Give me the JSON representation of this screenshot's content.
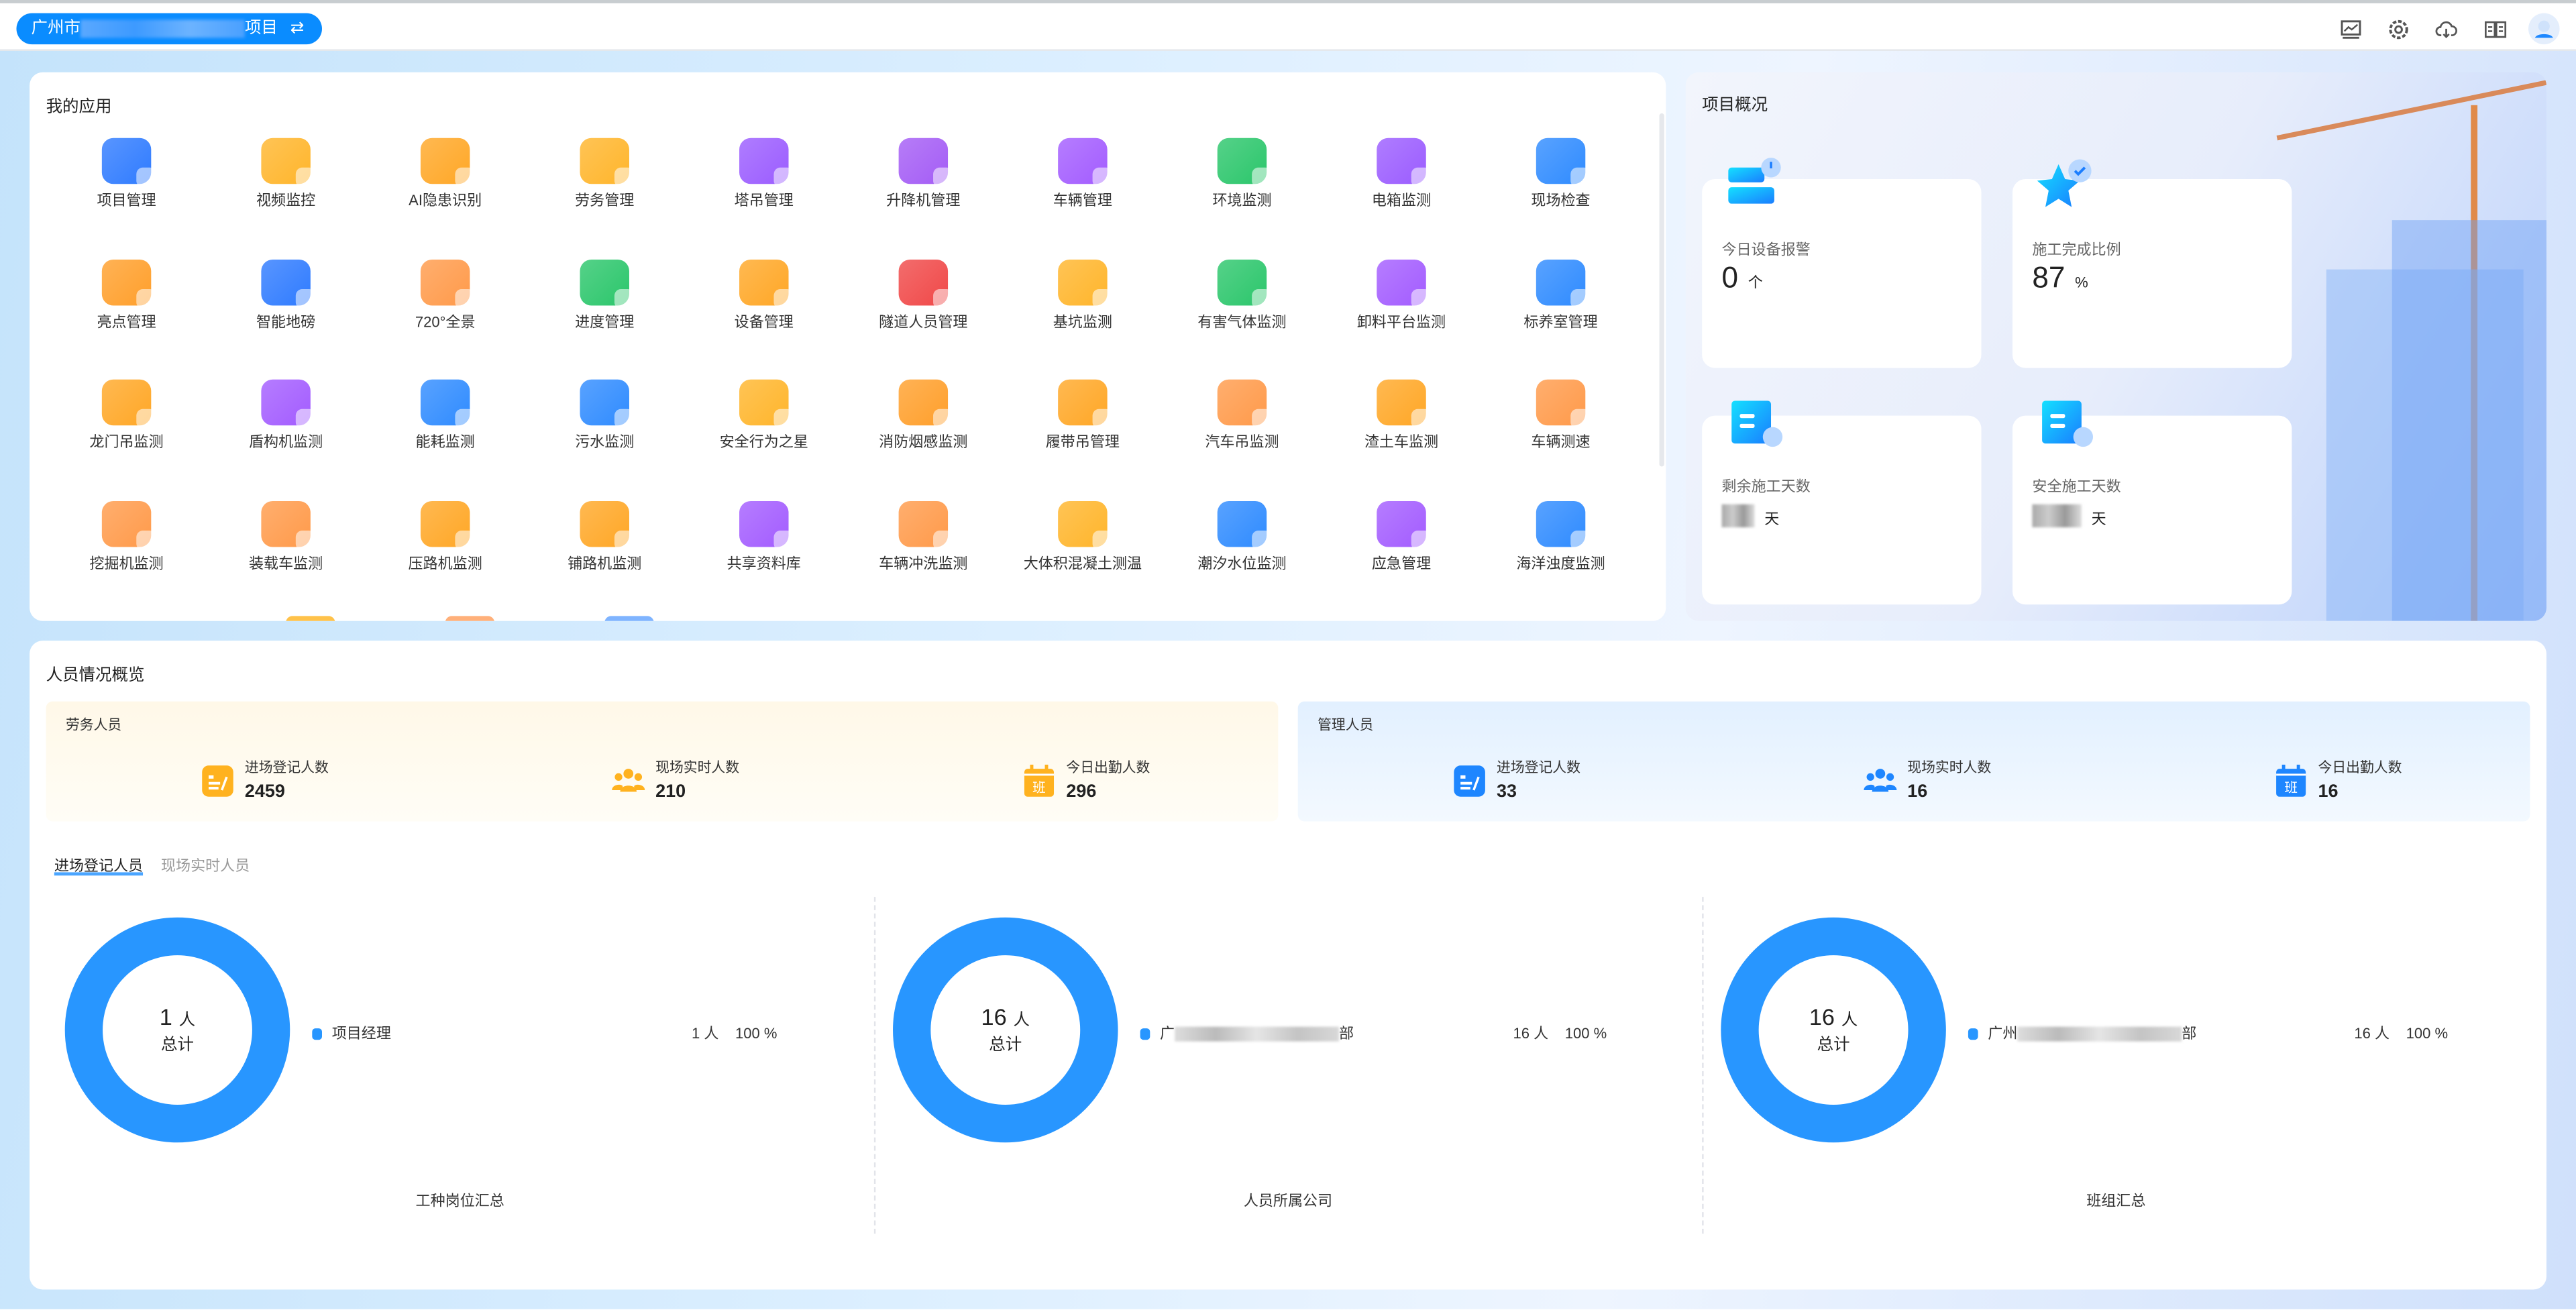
{
  "header": {
    "project_prefix": "广州市",
    "project_suffix": "项目",
    "switch_icon": "swap-arrows-icon",
    "icons": [
      "monitor-chart-icon",
      "gear-icon",
      "cloud-download-icon",
      "book-icon",
      "user-avatar-icon"
    ]
  },
  "apps": {
    "title": "我的应用",
    "items": [
      {
        "label": "项目管理",
        "color": "#2f7bff"
      },
      {
        "label": "视频监控",
        "color": "#ffb52b"
      },
      {
        "label": "AI隐患识别",
        "color": "#ffa726"
      },
      {
        "label": "劳务管理",
        "color": "#ffb52b"
      },
      {
        "label": "塔吊管理",
        "color": "#9b5cff"
      },
      {
        "label": "升降机管理",
        "color": "#a45cf5"
      },
      {
        "label": "车辆管理",
        "color": "#a35cff"
      },
      {
        "label": "环境监测",
        "color": "#2bc66b"
      },
      {
        "label": "电箱监测",
        "color": "#9b5cff"
      },
      {
        "label": "现场检查",
        "color": "#2f8bff"
      },
      {
        "label": "亮点管理",
        "color": "#ff9f2b"
      },
      {
        "label": "智能地磅",
        "color": "#2f7bff"
      },
      {
        "label": "720°全景",
        "color": "#ff9a4a"
      },
      {
        "label": "进度管理",
        "color": "#2bc66b"
      },
      {
        "label": "设备管理",
        "color": "#ffa726"
      },
      {
        "label": "隧道人员管理",
        "color": "#f04848"
      },
      {
        "label": "基坑监测",
        "color": "#ffb52b"
      },
      {
        "label": "有害气体监测",
        "color": "#2bc66b"
      },
      {
        "label": "卸料平台监测",
        "color": "#a35cff"
      },
      {
        "label": "标养室管理",
        "color": "#2f8bff"
      },
      {
        "label": "龙门吊监测",
        "color": "#ffa726"
      },
      {
        "label": "盾构机监测",
        "color": "#a35cff"
      },
      {
        "label": "能耗监测",
        "color": "#2f8bff"
      },
      {
        "label": "污水监测",
        "color": "#2f8bff"
      },
      {
        "label": "安全行为之星",
        "color": "#ffb52b"
      },
      {
        "label": "消防烟感监测",
        "color": "#ff9f2b"
      },
      {
        "label": "履带吊管理",
        "color": "#ffa726"
      },
      {
        "label": "汽车吊监测",
        "color": "#ff9a4a"
      },
      {
        "label": "渣土车监测",
        "color": "#ffa726"
      },
      {
        "label": "车辆测速",
        "color": "#ff9a4a"
      },
      {
        "label": "挖掘机监测",
        "color": "#ff9a4a"
      },
      {
        "label": "装载车监测",
        "color": "#ff9a4a"
      },
      {
        "label": "压路机监测",
        "color": "#ffa726"
      },
      {
        "label": "铺路机监测",
        "color": "#ffa726"
      },
      {
        "label": "共享资料库",
        "color": "#a35cff"
      },
      {
        "label": "车辆冲洗监测",
        "color": "#ff9a4a"
      },
      {
        "label": "大体积混凝土测温",
        "color": "#ffb52b"
      },
      {
        "label": "潮汐水位监测",
        "color": "#2f8bff"
      },
      {
        "label": "应急管理",
        "color": "#a35cff"
      },
      {
        "label": "海洋浊度监测",
        "color": "#2f8bff"
      }
    ]
  },
  "overview": {
    "title": "项目概况",
    "cards": [
      {
        "label": "今日设备报警",
        "value": "0",
        "unit": "个",
        "icon": "device-alarm-icon"
      },
      {
        "label": "施工完成比例",
        "value": "87",
        "unit": "%",
        "icon": "star-check-icon"
      },
      {
        "label": "剩余施工天数",
        "value": "",
        "unit": "天",
        "icon": "calendar-hourglass-icon"
      },
      {
        "label": "安全施工天数",
        "value": "",
        "unit": "天",
        "icon": "calendar-clock-icon"
      }
    ]
  },
  "personnel": {
    "title": "人员情况概览",
    "labor": {
      "title": "劳务人员",
      "stats": [
        {
          "label": "进场登记人数",
          "value": "2459",
          "icon": "register-form-icon"
        },
        {
          "label": "现场实时人数",
          "value": "210",
          "icon": "people-group-icon"
        },
        {
          "label": "今日出勤人数",
          "value": "296",
          "icon": "calendar-shift-icon"
        }
      ]
    },
    "management": {
      "title": "管理人员",
      "stats": [
        {
          "label": "进场登记人数",
          "value": "33",
          "icon": "register-form-icon"
        },
        {
          "label": "现场实时人数",
          "value": "16",
          "icon": "people-group-icon"
        },
        {
          "label": "今日出勤人数",
          "value": "16",
          "icon": "calendar-shift-icon"
        }
      ]
    },
    "tabs": [
      {
        "label": "进场登记人员",
        "active": true
      },
      {
        "label": "现场实时人员",
        "active": false
      }
    ],
    "accent": "#2896ff"
  },
  "chart_data": [
    {
      "type": "pie",
      "caption": "工种岗位汇总",
      "total": "1",
      "unit": "人",
      "center_label": "总计",
      "series": [
        {
          "label": "项目经理",
          "label_suffix": "",
          "value": 1,
          "value_text": "1 人",
          "percent": "100 %"
        }
      ]
    },
    {
      "type": "pie",
      "caption": "人员所属公司",
      "total": "16",
      "unit": "人",
      "center_label": "总计",
      "series": [
        {
          "label": "广",
          "label_suffix": "部",
          "value": 16,
          "value_text": "16 人",
          "percent": "100 %"
        }
      ]
    },
    {
      "type": "pie",
      "caption": "班组汇总",
      "total": "16",
      "unit": "人",
      "center_label": "总计",
      "series": [
        {
          "label": "广州",
          "label_suffix": "部",
          "value": 16,
          "value_text": "16 人",
          "percent": "100 %"
        }
      ]
    }
  ]
}
